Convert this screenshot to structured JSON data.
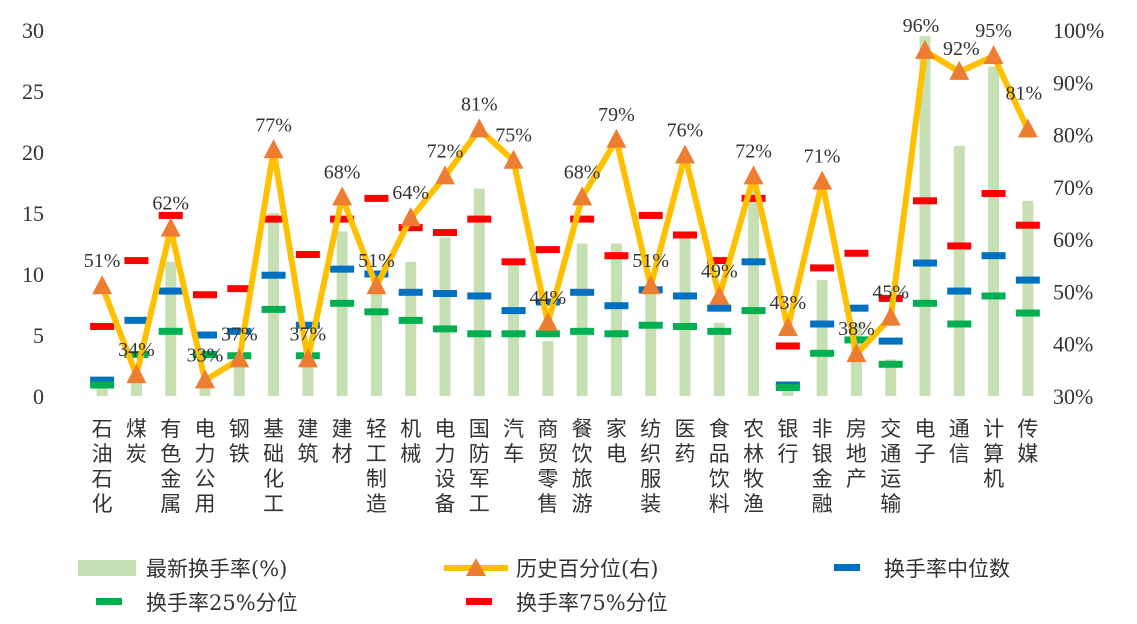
{
  "chart_data": {
    "type": "bar",
    "categories": [
      "石油石化",
      "煤炭",
      "有色金属",
      "电力公用",
      "钢铁",
      "基础化工",
      "建筑",
      "建材",
      "轻工制造",
      "机械",
      "电力设备",
      "国防军工",
      "汽车",
      "商贸零售",
      "餐饮旅游",
      "家电",
      "纺织服装",
      "医药",
      "食品饮料",
      "农林牧渔",
      "银行",
      "非银金融",
      "房地产",
      "交通运输",
      "电子",
      "通信",
      "计算机",
      "传媒"
    ],
    "y_left": {
      "min": 0,
      "max": 30,
      "ticks": [
        "0",
        "5",
        "10",
        "15",
        "20",
        "25",
        "30"
      ],
      "tick_values": [
        0,
        5,
        10,
        15,
        20,
        25,
        30
      ]
    },
    "y_right": {
      "min": 30,
      "max": 100,
      "ticks": [
        "30%",
        "40%",
        "50%",
        "60%",
        "70%",
        "80%",
        "90%",
        "100%"
      ],
      "tick_values": [
        30,
        40,
        50,
        60,
        70,
        80,
        90,
        100
      ]
    },
    "series": [
      {
        "name": "最新换手率(%)",
        "kind": "bar",
        "axis": "left",
        "color": "#c6e0b4",
        "values": [
          1.2,
          1.5,
          11.0,
          1.0,
          3.5,
          15.0,
          3.0,
          13.5,
          8.5,
          11.0,
          13.0,
          17.0,
          11.0,
          4.5,
          12.5,
          12.5,
          9.0,
          13.0,
          6.0,
          17.0,
          0.8,
          9.5,
          6.0,
          3.0,
          29.5,
          20.5,
          27.0,
          16.0
        ]
      },
      {
        "name": "历史百分位(右)",
        "kind": "line",
        "axis": "right",
        "color": "#ffc000",
        "marker_color": "#ed7d31",
        "values": [
          51,
          34,
          62,
          33,
          37,
          77,
          37,
          68,
          51,
          64,
          72,
          81,
          75,
          44,
          68,
          79,
          51,
          76,
          49,
          72,
          43,
          71,
          38,
          45,
          96,
          92,
          95,
          81
        ],
        "labels": [
          "51%",
          "34%",
          "62%",
          "33%",
          "37%",
          "77%",
          "37%",
          "68%",
          "51%",
          "64%",
          "72%",
          "81%",
          "75%",
          "44%",
          "68%",
          "79%",
          "51%",
          "76%",
          "49%",
          "72%",
          "43%",
          "71%",
          "38%",
          "45%",
          "96%",
          "92%",
          "95%",
          "81%"
        ]
      },
      {
        "name": "换手率中位数",
        "kind": "dash",
        "axis": "left",
        "color": "#0070c0",
        "values": [
          1.3,
          6.2,
          8.6,
          5.0,
          5.3,
          9.9,
          5.8,
          10.4,
          10.0,
          8.5,
          8.4,
          8.2,
          7.0,
          7.7,
          8.5,
          7.4,
          8.7,
          8.2,
          7.2,
          11.0,
          0.9,
          5.9,
          7.2,
          4.5,
          10.9,
          8.6,
          11.5,
          9.5
        ]
      },
      {
        "name": "换手率25%分位",
        "kind": "dash",
        "axis": "left",
        "color": "#00b050",
        "values": [
          0.9,
          3.4,
          5.3,
          3.4,
          3.3,
          7.1,
          3.3,
          7.6,
          6.9,
          6.2,
          5.5,
          5.1,
          5.1,
          5.1,
          5.3,
          5.1,
          5.8,
          5.7,
          5.3,
          7.0,
          0.7,
          3.5,
          4.6,
          2.6,
          7.6,
          5.9,
          8.2,
          6.8
        ]
      },
      {
        "name": "换手率75%分位",
        "kind": "dash",
        "axis": "left",
        "color": "#ff0000",
        "values": [
          5.7,
          11.1,
          14.8,
          8.3,
          8.8,
          14.5,
          11.6,
          14.5,
          16.2,
          13.8,
          13.4,
          14.5,
          11.0,
          12.0,
          14.5,
          11.5,
          14.8,
          13.2,
          11.1,
          16.2,
          4.1,
          10.5,
          11.7,
          8.0,
          16.0,
          12.3,
          16.6,
          14.0
        ]
      }
    ]
  }
}
